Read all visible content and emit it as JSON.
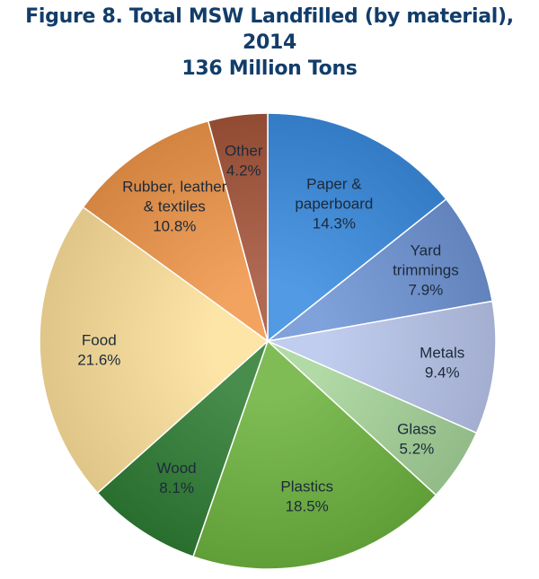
{
  "chart_data": {
    "type": "pie",
    "title": "Figure 8. Total MSW Landfilled (by material), 2014",
    "subtitle": "136 Million Tons",
    "slices": [
      {
        "label": "Paper &\npaperboard",
        "pct_label": "14.3%",
        "value": 14.3,
        "color": "#3a8ce0"
      },
      {
        "label": "Yard\ntrimmings",
        "pct_label": "7.9%",
        "value": 7.9,
        "color": "#6f95d6"
      },
      {
        "label": "Metals",
        "pct_label": "9.4%",
        "value": 9.4,
        "color": "#b9c6ec"
      },
      {
        "label": "Glass",
        "pct_label": "5.2%",
        "value": 5.2,
        "color": "#a6d59a"
      },
      {
        "label": "Plastics",
        "pct_label": "18.5%",
        "value": 18.5,
        "color": "#6db33f"
      },
      {
        "label": "Wood",
        "pct_label": "8.1%",
        "value": 8.1,
        "color": "#2f7d34"
      },
      {
        "label": "Food",
        "pct_label": "21.6%",
        "value": 21.6,
        "color": "#fde19b"
      },
      {
        "label": "Rubber, leather\n& textiles",
        "pct_label": "10.8%",
        "value": 10.8,
        "color": "#f0964a"
      },
      {
        "label": "Other",
        "pct_label": "4.2%",
        "value": 4.2,
        "color": "#a5553a"
      }
    ]
  }
}
